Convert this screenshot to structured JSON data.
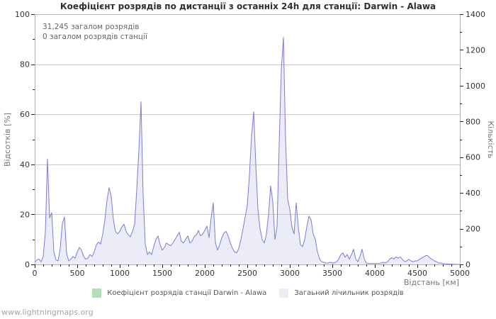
{
  "title": "Коефіцієнт розрядів по дистанції з останніх 24h для станції: Darwin - Alawa",
  "annotations": {
    "total_strokes": "31,245 загалом розрядів",
    "station_strokes": "0 загалом розрядів станції"
  },
  "axes": {
    "left": {
      "label": "Відсотків  [%]",
      "ticks": [
        0,
        20,
        40,
        60,
        80,
        100
      ],
      "minor_step": 10,
      "range": [
        0,
        100
      ]
    },
    "right": {
      "label": "Кількість",
      "ticks": [
        0,
        200,
        400,
        600,
        800,
        1000,
        1200,
        1400
      ],
      "minor_step": 100,
      "range": [
        0,
        1400
      ]
    },
    "x": {
      "label": "Відстань  [км]",
      "ticks": [
        0,
        500,
        1000,
        1500,
        2000,
        2500,
        3000,
        3500,
        4000,
        4500,
        5000
      ],
      "minor_step": 100,
      "range": [
        0,
        5000
      ]
    }
  },
  "legend": [
    {
      "label": "Коефіцієнт розрядів станції Darwin - Alawa",
      "color": "#b4dfb4"
    },
    {
      "label": "Загаьний лічильник розрядів",
      "color": "#ececf9"
    }
  ],
  "watermark": "www.lightningmaps.org",
  "colors": {
    "series_line": "#7b7bd8",
    "series_fill": "#ececf9",
    "station_series": "#b4dfb4",
    "grid": "#c8c8c8",
    "plot_border": "#b4b4b4",
    "tick": "#222222"
  },
  "chart_data": {
    "type": "area",
    "title": "Коефіцієнт розрядів по дистанції з останніх 24h для станції: Darwin - Alawa",
    "xlabel": "Відстань [км]",
    "ylabel_left": "Відсотків [%]",
    "ylabel_right": "Кількість",
    "x_range_km": [
      0,
      5000
    ],
    "left_axis_range_percent": [
      0,
      100
    ],
    "right_axis_range_count": [
      0,
      1400
    ],
    "grid": "horizontal-only",
    "legend_position": "bottom-center",
    "totals": {
      "all_strokes_24h": 31245,
      "station_strokes_24h": 0
    },
    "x_start_km": 0,
    "x_step_km": 25,
    "series": [
      {
        "name": "Коефіцієнт розрядів станції Darwin - Alawa",
        "axis": "left-percent",
        "color": "#b4dfb4",
        "constant_value": 0
      },
      {
        "name": "Загаьний лічильник розрядів",
        "axis": "right-count",
        "line_color": "#7b7bd8",
        "fill_color": "#ececf9",
        "values": [
          10,
          25,
          30,
          15,
          45,
          180,
          590,
          260,
          290,
          70,
          25,
          20,
          90,
          230,
          265,
          60,
          20,
          30,
          45,
          35,
          70,
          95,
          80,
          45,
          30,
          35,
          55,
          45,
          70,
          110,
          125,
          115,
          170,
          250,
          360,
          430,
          380,
          250,
          185,
          170,
          185,
          210,
          225,
          185,
          165,
          155,
          185,
          225,
          420,
          640,
          910,
          390,
          115,
          55,
          70,
          55,
          100,
          140,
          160,
          110,
          80,
          95,
          120,
          110,
          105,
          120,
          140,
          160,
          180,
          130,
          120,
          140,
          160,
          120,
          130,
          155,
          165,
          190,
          160,
          170,
          190,
          215,
          150,
          260,
          345,
          120,
          80,
          110,
          150,
          175,
          185,
          160,
          120,
          90,
          70,
          65,
          90,
          140,
          200,
          265,
          330,
          500,
          720,
          855,
          560,
          310,
          200,
          140,
          120,
          170,
          280,
          440,
          350,
          140,
          210,
          675,
          1090,
          1270,
          700,
          365,
          310,
          210,
          170,
          345,
          210,
          110,
          100,
          140,
          210,
          270,
          250,
          170,
          140,
          70,
          30,
          15,
          12,
          8,
          8,
          12,
          8,
          8,
          15,
          30,
          55,
          65,
          40,
          55,
          30,
          55,
          85,
          30,
          15,
          45,
          85,
          30,
          8,
          5,
          5,
          5,
          5,
          5,
          5,
          8,
          12,
          8,
          15,
          30,
          38,
          30,
          42,
          35,
          42,
          28,
          15,
          20,
          28,
          20,
          15,
          20,
          20,
          28,
          35,
          42,
          50,
          48,
          35,
          28,
          20,
          15,
          8,
          8,
          5,
          3,
          2,
          2,
          1,
          1,
          0,
          0,
          0
        ]
      }
    ]
  }
}
